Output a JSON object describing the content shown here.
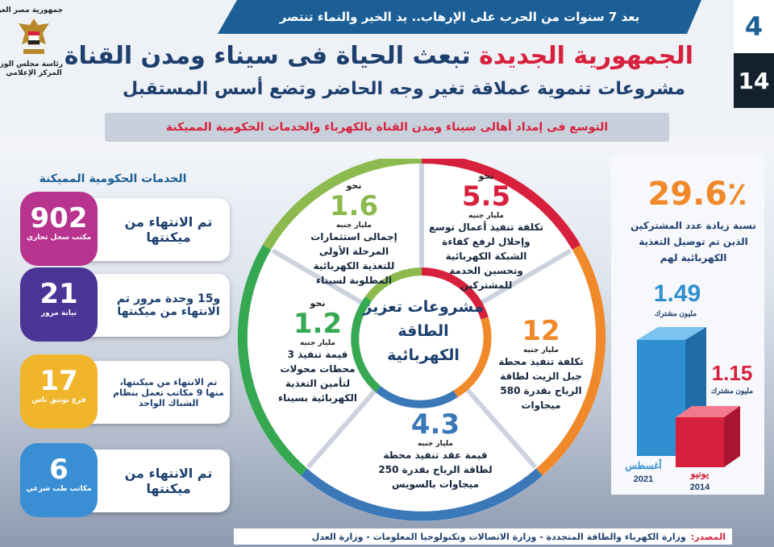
{
  "header": {
    "ribbon": "بعد 7 سنوات من الحرب على الإرهاب.. يد الخير والنماء تنتصر",
    "title_red": "الجمهورية الجديدة",
    "title_rest": "تبعث الحياة فى سيناء ومدن القناة",
    "subtitle": "مشروعات تنموية عملاقة تغير وجه الحاضر وتضع أسس المستقبل",
    "issue_top": "4",
    "issue_bottom": "14"
  },
  "logo": {
    "line1": "جمهورية مصر العربية",
    "line2": "رئاسة مجلس الوزراء",
    "line3": "المركز الإعلامي"
  },
  "banner": "التوسع فى إمداد أهالى سيناء ومدن القناة بالكهرباء والخدمات الحكومية المميكنة",
  "services": {
    "heading": "الخدمات الحكومية المميكنة",
    "items": [
      {
        "value": "902",
        "unit": "مكتب سجل تجاري",
        "text": "تم الانتهاء من ميكنتها",
        "color": "#b8338e"
      },
      {
        "value": "21",
        "unit": "نيابة مرور",
        "text": "و15 وحدة مرور تم الانتهاء من ميكنتها",
        "color": "#4a3596"
      },
      {
        "value": "17",
        "unit": "فرع توثيق ناس",
        "text": "تم الانتهاء من ميكنتها، منها 9 مكاتب تعمل بنظام الشباك الواحد",
        "color": "#f0b52a"
      },
      {
        "value": "6",
        "unit": "مكاتب طب شرعي",
        "text": "تم الانتهاء من ميكنتها",
        "color": "#3a8fd4"
      }
    ]
  },
  "wheel": {
    "center": "مشروعات تعزيز الطاقة الكهربائية",
    "segments": [
      {
        "nahw": "نحو",
        "value": "1.6",
        "unit": "مليار جنيه",
        "desc": "إجمالى استثمارات المرحلة الأولى للتغذية الكهربائية المطلوبة لسيناء",
        "color": "#8cba4e"
      },
      {
        "nahw": "نحو",
        "value": "5.5",
        "unit": "مليار جنيه",
        "desc": "تكلفة تنفيذ أعمال توسع وإحلال لرفع كفاءة الشبكة الكهربائية وتحسين الخدمة للمشتركين",
        "color": "#d7213c"
      },
      {
        "nahw": "",
        "value": "12",
        "unit": "مليار جنيه",
        "desc": "تكلفة تنفيذ محطة جبل الزيت لطاقة الرياح بقدرة 580 ميجاوات",
        "color": "#f0892a"
      },
      {
        "nahw": "",
        "value": "4.3",
        "unit": "مليار جنيه",
        "desc": "قيمة عقد تنفيذ محطة لطاقة الرياح بقدرة 250 ميجاوات بالسويس",
        "color": "#3a78b8"
      },
      {
        "nahw": "نحو",
        "value": "1.2",
        "unit": "مليار جنيه",
        "desc": "قيمة تنفيذ 3 محطات محولات لتأمين التغذية الكهربائية بسيناء",
        "color": "#36a852"
      }
    ]
  },
  "subscribers": {
    "pct": "29.6٪",
    "pct_desc": "نسبة زيادة عدد المشتركين الذين تم توصيل التغذية الكهربائية لهم",
    "bar1_value": "1.49",
    "bar1_unit": "مليون مشترك",
    "bar1_month": "أغسطس",
    "bar1_year": "2021",
    "bar1_color": "#2f8fd0",
    "bar2_value": "1.15",
    "bar2_unit": "مليون مشترك",
    "bar2_month": "يونيو",
    "bar2_year": "2014",
    "bar2_color": "#d7213c"
  },
  "footer": {
    "label": "المصدر:",
    "text": "وزارة الكهرباء والطاقة المتجددة - وزارة الاتصالات وتكنولوجيا المعلومات - وزارة العدل"
  }
}
